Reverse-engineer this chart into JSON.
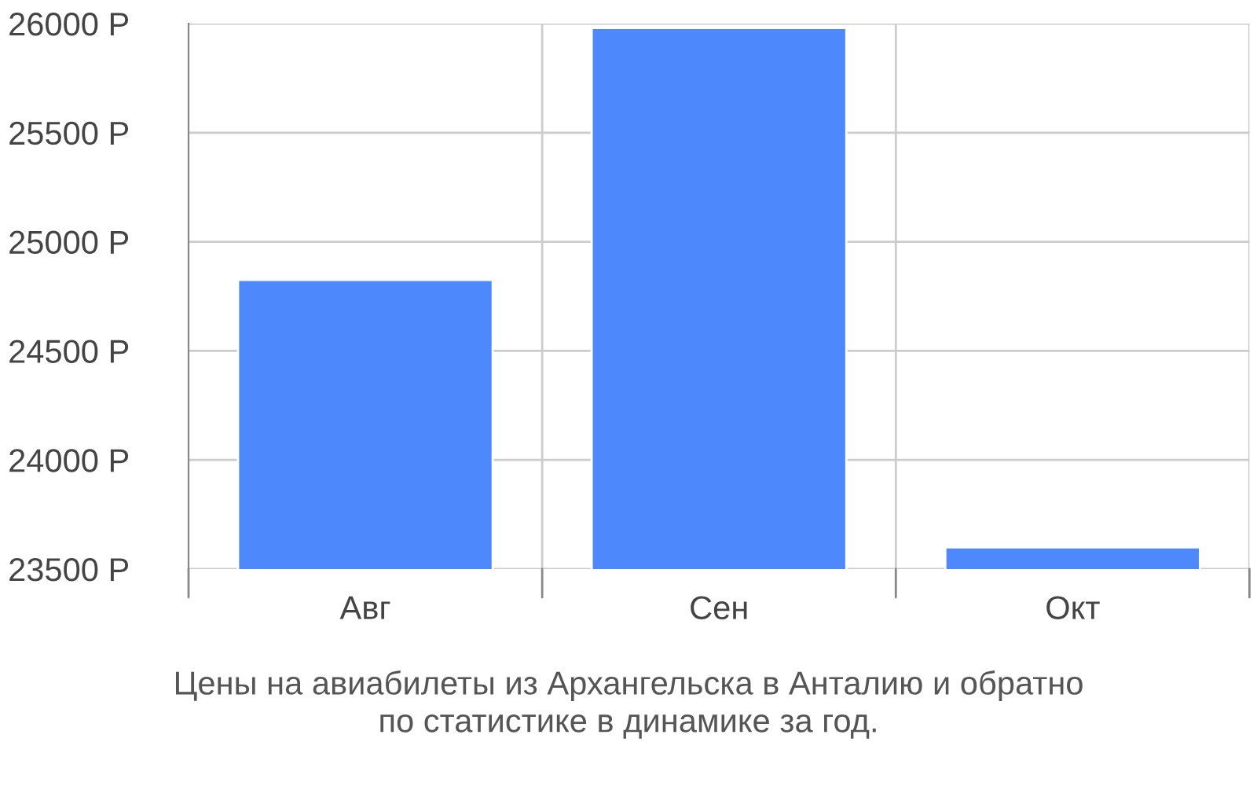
{
  "chart_data": {
    "type": "bar",
    "categories": [
      "Авг",
      "Сен",
      "Окт"
    ],
    "values": [
      24825,
      25980,
      23600
    ],
    "color": "#4d88fd",
    "ylim": [
      23500,
      26000
    ],
    "yticks": [
      {
        "value": 23500,
        "label": "23500 Р"
      },
      {
        "value": 24000,
        "label": "24000 Р"
      },
      {
        "value": 24500,
        "label": "24500 Р"
      },
      {
        "value": 25000,
        "label": "25000 Р"
      },
      {
        "value": 25500,
        "label": "25500 Р"
      },
      {
        "value": 26000,
        "label": "26000 Р"
      }
    ],
    "grid": true,
    "annotations": [
      "Цены на авиабилеты из Архангельска в Анталию и обратно\nпо статистике в динамике за год."
    ]
  }
}
